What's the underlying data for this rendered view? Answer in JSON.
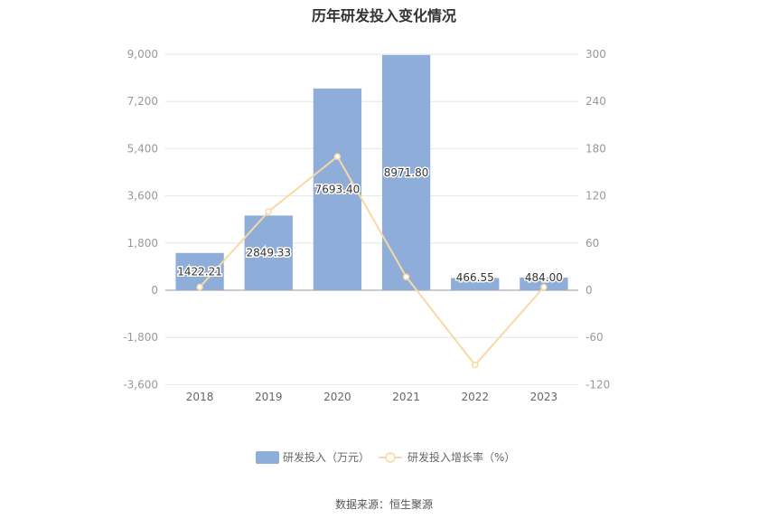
{
  "chart_data": {
    "type": "bar",
    "title": "历年研发投入变化情况",
    "categories": [
      "2018",
      "2019",
      "2020",
      "2021",
      "2022",
      "2023"
    ],
    "series": [
      {
        "name": "研发投入（万元）",
        "type": "bar",
        "axis": "left",
        "values": [
          1422.21,
          2849.33,
          7693.4,
          8971.8,
          466.55,
          484.0
        ],
        "labels": [
          "1422.21",
          "2849.33",
          "7693.40",
          "8971.80",
          "466.55",
          "484.00"
        ]
      },
      {
        "name": "研发投入增长率（%）",
        "type": "line",
        "axis": "right",
        "values": [
          4,
          100,
          170,
          17,
          -95,
          4
        ]
      }
    ],
    "y_left": {
      "min": -3600,
      "max": 9000,
      "ticks": [
        9000,
        7200,
        5400,
        3600,
        1800,
        0,
        -1800,
        -3600
      ],
      "tick_labels": [
        "9,000",
        "7,200",
        "5,400",
        "3,600",
        "1,800",
        "0",
        "-1,800",
        "-3,600"
      ]
    },
    "y_right": {
      "min": -120,
      "max": 300,
      "ticks": [
        300,
        240,
        180,
        120,
        60,
        0,
        -60,
        -120
      ],
      "tick_labels": [
        "300",
        "240",
        "180",
        "120",
        "60",
        "0",
        "-60",
        "-120"
      ]
    },
    "grid": true,
    "legend_position": "bottom",
    "colors": {
      "bar": "#8eadd9",
      "line": "#f8d9a3",
      "grid": "#e6e6e6",
      "axis": "#999999",
      "text": "#999999"
    },
    "source": "数据来源：恒生聚源"
  }
}
